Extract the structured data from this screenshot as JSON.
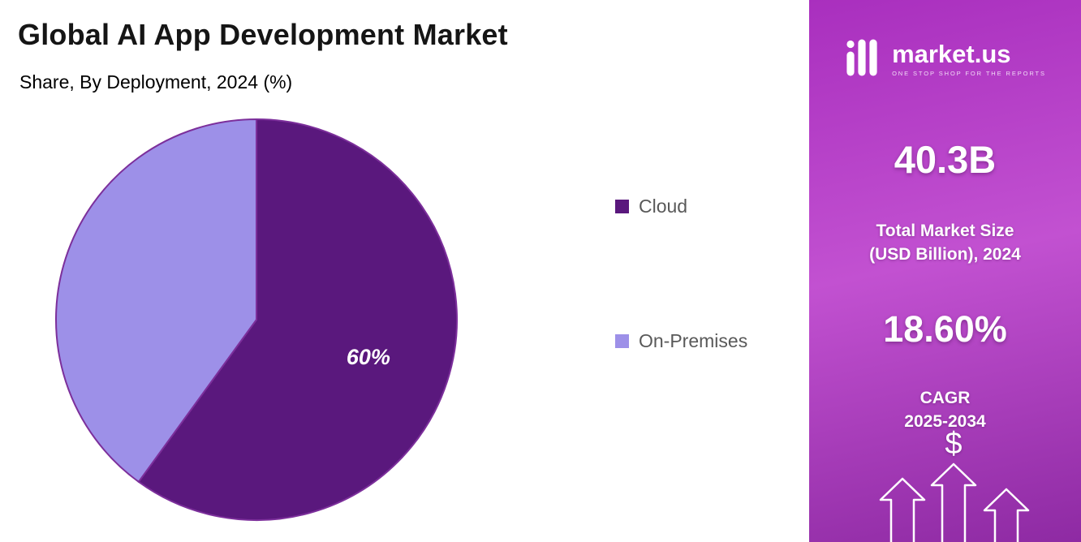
{
  "header": {
    "title": "Global AI App Development Market",
    "subtitle": "Share, By Deployment, 2024 (%)"
  },
  "chart_data": {
    "type": "pie",
    "title": "Global AI App Development Market",
    "subtitle": "Share, By Deployment, 2024 (%)",
    "unit": "%",
    "start_angle": "top",
    "direction": "clockwise",
    "legend_position": "right",
    "stroke_color": "#7c2f9b",
    "slices": [
      {
        "label": "Cloud",
        "value": 60,
        "pct_label": "60%",
        "color": "#5a187d"
      },
      {
        "label": "On-Premises",
        "value": 40,
        "pct_label": "",
        "color": "#9d90e8"
      }
    ]
  },
  "sidebar": {
    "logo": {
      "brand": "market.us",
      "tagline": "ONE STOP SHOP FOR THE REPORTS"
    },
    "market_size": {
      "value": "40.3B",
      "label_line1": "Total Market Size",
      "label_line2": "(USD Billion), 2024"
    },
    "cagr": {
      "value": "18.60%",
      "label_line1": "CAGR",
      "label_line2": "2025-2034"
    },
    "dollar_symbol": "$",
    "colors": {
      "panel_top": "#a92fbe",
      "panel_mid": "#c251d1",
      "panel_bottom": "#8e2aa3",
      "text": "#ffffff"
    }
  }
}
